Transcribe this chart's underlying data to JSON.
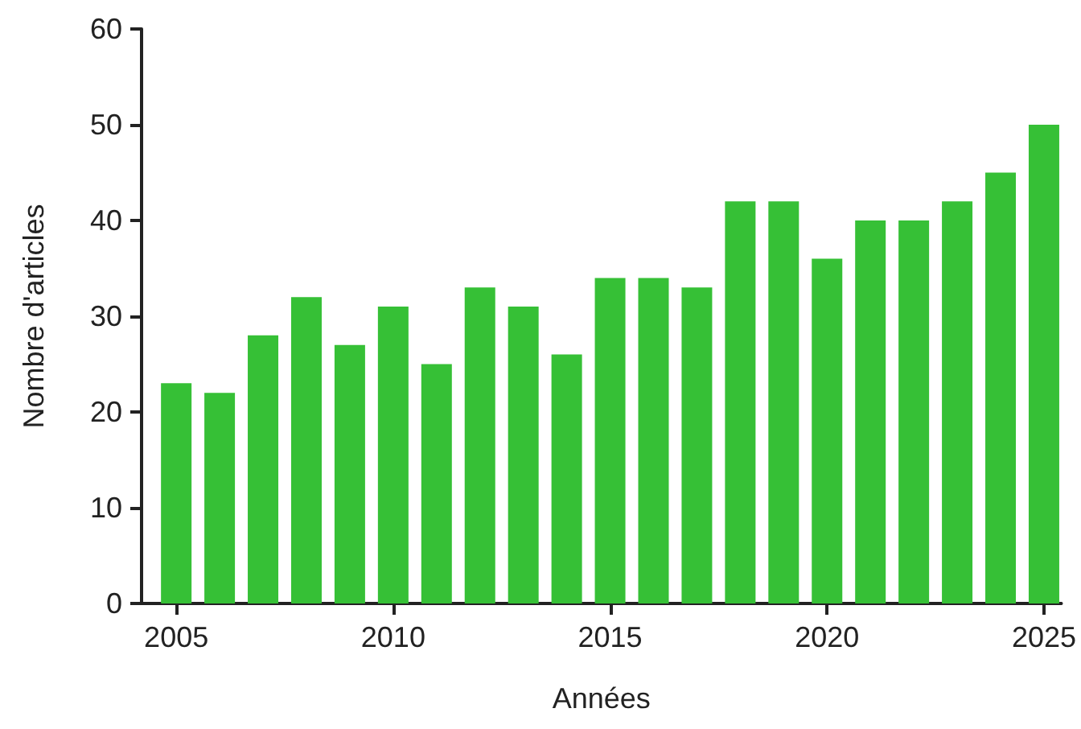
{
  "chart_data": {
    "type": "bar",
    "xlabel": "Années",
    "ylabel": "Nombre d'articles",
    "x": [
      2005,
      2006,
      2007,
      2008,
      2009,
      2010,
      2011,
      2012,
      2013,
      2014,
      2015,
      2016,
      2017,
      2018,
      2019,
      2020,
      2021,
      2022,
      2023,
      2024,
      2025
    ],
    "values": [
      23,
      22,
      28,
      32,
      27,
      31,
      25,
      33,
      31,
      26,
      34,
      34,
      33,
      42,
      42,
      36,
      40,
      40,
      42,
      45,
      50
    ],
    "color": "#36c036",
    "xlim": [
      2004.2,
      2025.4
    ],
    "xticks": [
      2005,
      2010,
      2015,
      2020,
      2025
    ],
    "ylim": [
      0,
      60
    ],
    "yticks": [
      0,
      10,
      20,
      30,
      40,
      50,
      60
    ],
    "grid": false
  }
}
